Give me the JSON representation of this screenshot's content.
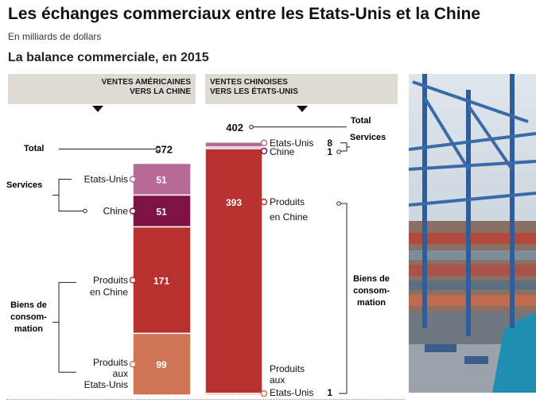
{
  "header": {
    "title": "Les échanges commerciaux entre les Etats-Unis et la Chine",
    "subtitle": "En milliards de dollars",
    "section": "La balance commerciale, en 2015"
  },
  "column_headers": {
    "left": [
      "VENTES AMÉRICAINES",
      "VERS LA CHINE"
    ],
    "right": [
      "VENTES CHINOISES",
      "VERS LES ÉTATS-UNIS"
    ]
  },
  "group_labels": {
    "total": "Total",
    "services": "Services",
    "biens": [
      "Biens de",
      "consom-",
      "mation"
    ]
  },
  "chart_data": {
    "type": "bar",
    "stacked": true,
    "unit": "milliards de dollars",
    "series": [
      {
        "name": "VENTES AMÉRICAINES VERS LA CHINE",
        "total": 372,
        "segments": [
          {
            "group": "Services",
            "label": "Etats-Unis",
            "value": 51,
            "color": "#b56b95"
          },
          {
            "group": "Services",
            "label": "Chine",
            "value": 51,
            "color": "#7d1246"
          },
          {
            "group": "Biens de consommation",
            "label": "Produits en Chine",
            "value": 171,
            "color": "#b8312f"
          },
          {
            "group": "Biens de consommation",
            "label": "Produits aux Etats-Unis",
            "value": 99,
            "color": "#cf7553"
          }
        ]
      },
      {
        "name": "VENTES CHINOISES VERS LES ÉTATS-UNIS",
        "total": 402,
        "segments": [
          {
            "group": "Services",
            "label": "Etats-Unis",
            "value": 8,
            "color": "#b56b95"
          },
          {
            "group": "Services",
            "label": "Chine",
            "value": 1,
            "color": "#7d1246"
          },
          {
            "group": "Biens de consommation",
            "label": "Produits en Chine",
            "value": 393,
            "color": "#b8312f"
          },
          {
            "group": "Biens de consommation",
            "label": "Produits aux Etats-Unis",
            "value": 1,
            "color": "#cf7553"
          }
        ]
      }
    ]
  }
}
